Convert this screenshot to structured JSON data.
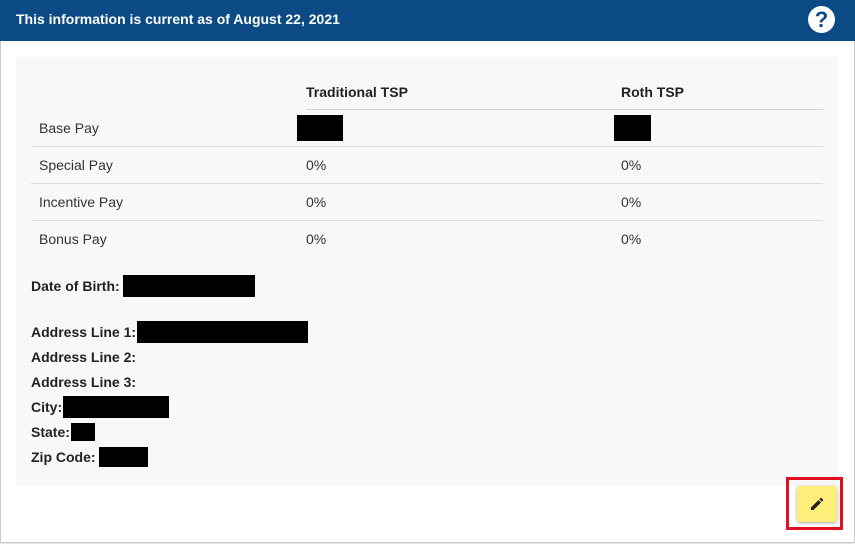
{
  "header": {
    "title": "This information is current as of August 22, 2021",
    "help_icon": "question-circle-icon",
    "background_color": "#0b4a84"
  },
  "table": {
    "columns": [
      "",
      "Traditional TSP",
      "Roth TSP"
    ],
    "rows": [
      {
        "label": "Base Pay",
        "traditional": "",
        "roth": ""
      },
      {
        "label": "Special Pay",
        "traditional": "0%",
        "roth": "0%"
      },
      {
        "label": "Incentive Pay",
        "traditional": "0%",
        "roth": "0%"
      },
      {
        "label": "Bonus Pay",
        "traditional": "0%",
        "roth": "0%"
      }
    ]
  },
  "personal": {
    "dob_label": "Date of Birth:",
    "address1_label": "Address Line 1:",
    "address2_label": "Address Line 2:",
    "address3_label": "Address Line 3:",
    "city_label": "City:",
    "state_label": "State:",
    "zip_label": "Zip Code:"
  },
  "edit_button": {
    "icon": "pencil-icon",
    "color": "#ffef7a",
    "highlight_color": "#e0101f"
  }
}
